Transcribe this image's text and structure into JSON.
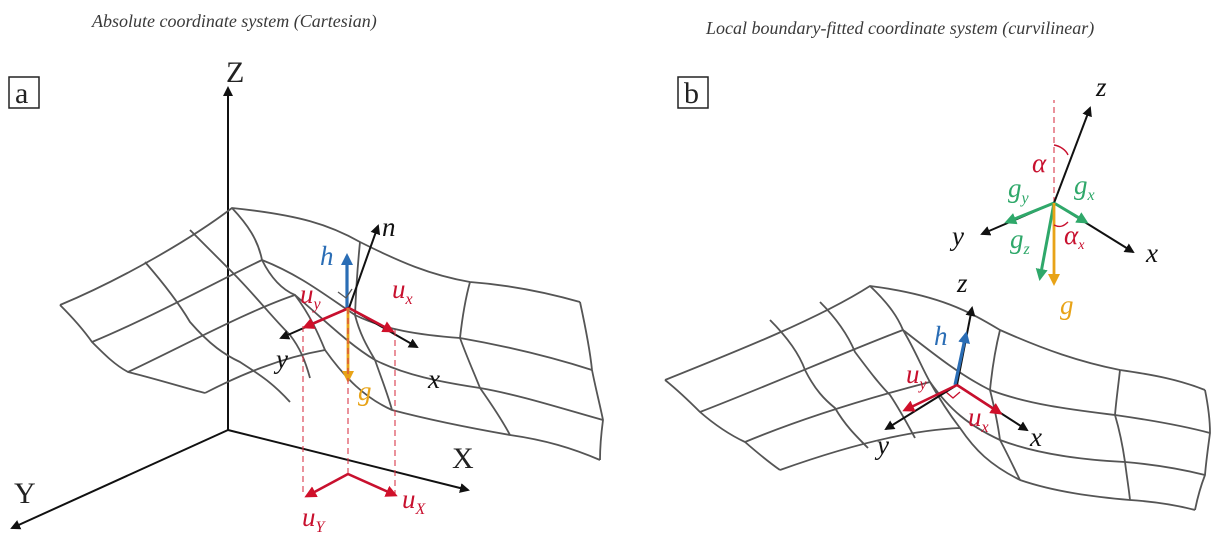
{
  "captions": {
    "left": "Absolute coordinate system (Cartesian)",
    "right": "Local boundary-fitted coordinate system (curvilinear)"
  },
  "panel_a": {
    "label": "a",
    "axes": {
      "X": "X",
      "Y": "Y",
      "Z": "Z"
    },
    "vectors": {
      "n": "n",
      "h": "h",
      "x": "x",
      "y": "y",
      "g": "g",
      "u_x": "u",
      "u_x_sub": "x",
      "u_y": "u",
      "u_y_sub": "y",
      "u_X": "u",
      "u_X_sub": "X",
      "u_Y": "u",
      "u_Y_sub": "Y"
    }
  },
  "panel_b": {
    "label": "b",
    "vectors": {
      "z_top": "z",
      "y_top": "y",
      "x_top": "x",
      "alpha": "α",
      "alpha_x": "α",
      "alpha_x_sub": "x",
      "g_x": "g",
      "g_x_sub": "x",
      "g_y": "g",
      "g_y_sub": "y",
      "g_z": "g",
      "g_z_sub": "z",
      "g": "g",
      "z": "z",
      "h": "h",
      "x": "x",
      "y": "y",
      "u_x": "u",
      "u_x_sub": "x",
      "u_y": "u",
      "u_y_sub": "y"
    }
  },
  "colors": {
    "red": "#c8102e",
    "blue": "#2a6db5",
    "orange": "#e8a317",
    "green": "#2fa86a",
    "black": "#111111"
  }
}
